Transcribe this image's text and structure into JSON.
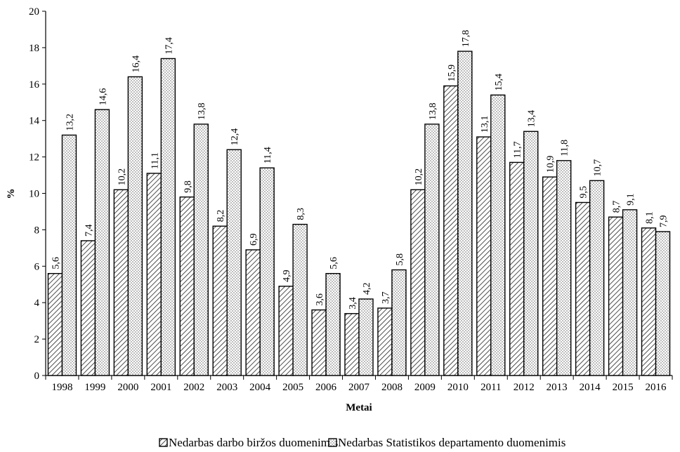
{
  "chart_data": {
    "type": "bar",
    "title": "",
    "xlabel": "Metai",
    "ylabel": "%",
    "ylim": [
      0,
      20
    ],
    "yticks": [
      0,
      2,
      4,
      6,
      8,
      10,
      12,
      14,
      16,
      18,
      20
    ],
    "categories": [
      "1998",
      "1999",
      "2000",
      "2001",
      "2002",
      "2003",
      "2004",
      "2005",
      "2006",
      "2007",
      "2008",
      "2009",
      "2010",
      "2011",
      "2012",
      "2013",
      "2014",
      "2015",
      "2016"
    ],
    "series": [
      {
        "name": "Nedarbas darbo biržos duomenimis",
        "pattern": "diagonal-hatch",
        "values": [
          5.6,
          7.4,
          10.2,
          11.1,
          9.8,
          8.2,
          6.9,
          4.9,
          3.6,
          3.4,
          3.7,
          10.2,
          15.9,
          13.1,
          11.7,
          10.9,
          9.5,
          8.7,
          8.1
        ],
        "labels": [
          "5,6",
          "7,4",
          "10,2",
          "11,1",
          "9,8",
          "8,2",
          "6,9",
          "4,9",
          "3,6",
          "3,4",
          "3,7",
          "10,2",
          "15,9",
          "13,1",
          "11,7",
          "10,9",
          "9,5",
          "8,7",
          "8,1"
        ]
      },
      {
        "name": "Nedarbas Statistikos departamento duomenimis",
        "pattern": "dotted",
        "values": [
          13.2,
          14.6,
          16.4,
          17.4,
          13.8,
          12.4,
          11.4,
          8.3,
          5.6,
          4.2,
          5.8,
          13.8,
          17.8,
          15.4,
          13.4,
          11.8,
          10.7,
          9.1,
          7.9
        ],
        "labels": [
          "13,2",
          "14,6",
          "16,4",
          "17,4",
          "13,8",
          "12,4",
          "11,4",
          "8,3",
          "5,6",
          "4,2",
          "5,8",
          "13,8",
          "17,8",
          "15,4",
          "13,4",
          "11,8",
          "10,7",
          "9,1",
          "7,9"
        ]
      }
    ],
    "legend_position": "bottom",
    "grid": false
  }
}
